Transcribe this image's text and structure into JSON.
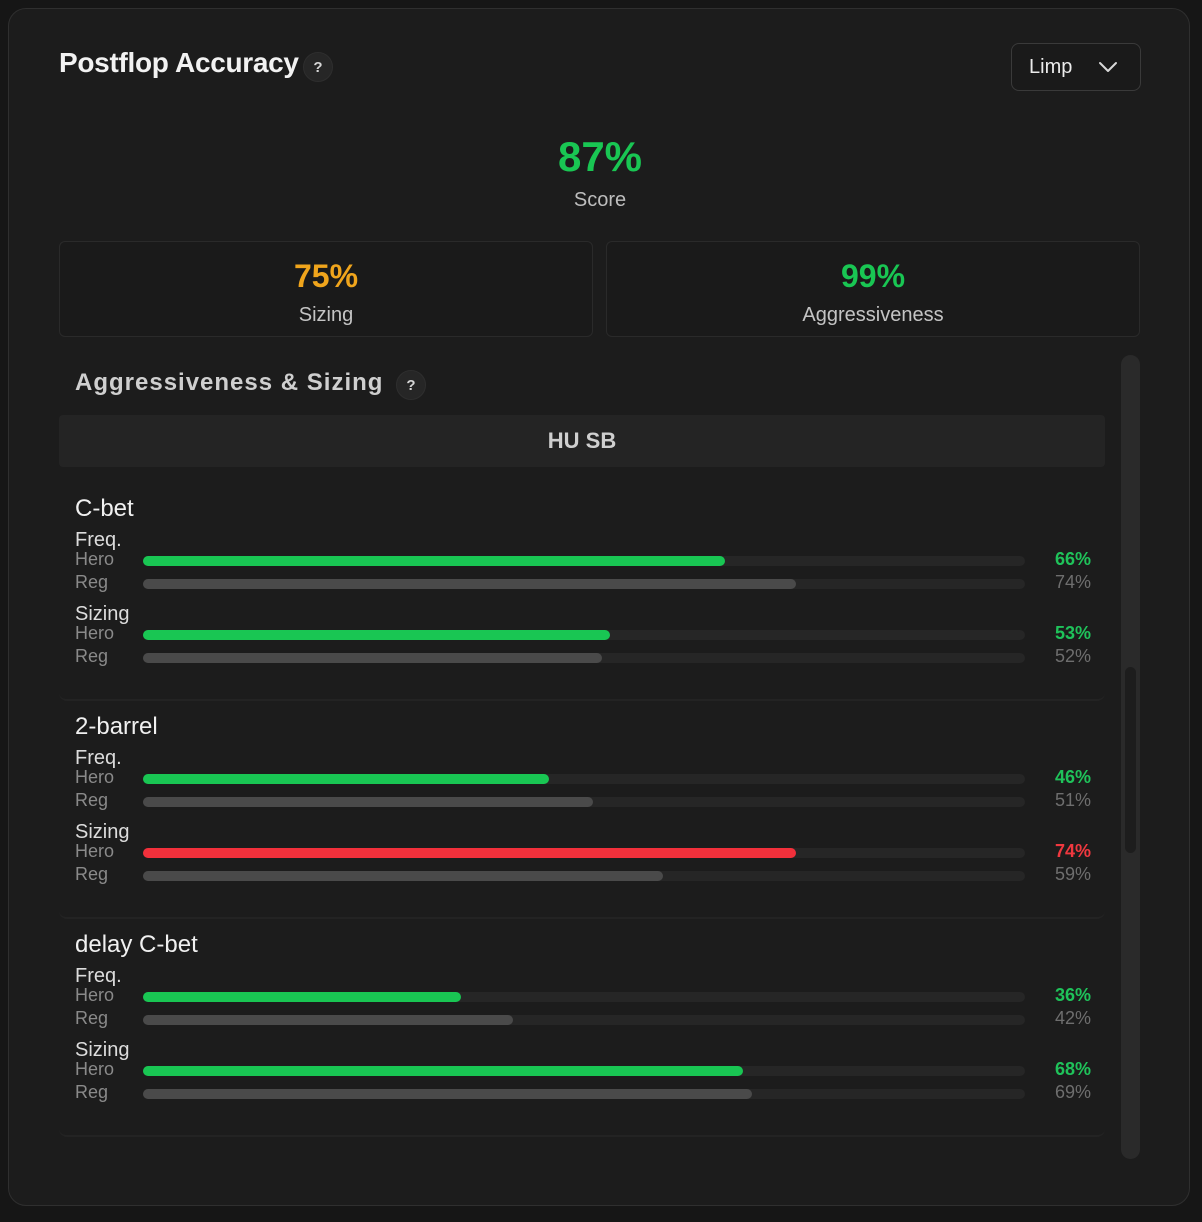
{
  "header": {
    "title": "Postflop Accuracy",
    "help": "?",
    "dropdown": {
      "selected": "Limp"
    }
  },
  "score": {
    "value": "87%",
    "label": "Score",
    "color": "#19c653"
  },
  "stats": [
    {
      "value": "75%",
      "label": "Sizing",
      "color": "#f0a51c"
    },
    {
      "value": "99%",
      "label": "Aggressiveness",
      "color": "#19c653"
    }
  ],
  "section": {
    "title": "Aggressiveness & Sizing",
    "help": "?",
    "group": "HU SB",
    "colors": {
      "good": "#19c653",
      "bad": "#f2303b",
      "reg": "#4a4a4a",
      "goodText": "#1fc25a",
      "badText": "#f0383f"
    },
    "blocks": [
      {
        "name": "C-bet",
        "metrics": [
          {
            "label": "Freq.",
            "hero_label": "Hero",
            "reg_label": "Reg",
            "hero": 66,
            "hero_text": "66%",
            "reg": 74,
            "reg_text": "74%",
            "status": "good"
          },
          {
            "label": "Sizing",
            "hero_label": "Hero",
            "reg_label": "Reg",
            "hero": 53,
            "hero_text": "53%",
            "reg": 52,
            "reg_text": "52%",
            "status": "good"
          }
        ]
      },
      {
        "name": "2-barrel",
        "metrics": [
          {
            "label": "Freq.",
            "hero_label": "Hero",
            "reg_label": "Reg",
            "hero": 46,
            "hero_text": "46%",
            "reg": 51,
            "reg_text": "51%",
            "status": "good"
          },
          {
            "label": "Sizing",
            "hero_label": "Hero",
            "reg_label": "Reg",
            "hero": 74,
            "hero_text": "74%",
            "reg": 59,
            "reg_text": "59%",
            "status": "bad"
          }
        ]
      },
      {
        "name": "delay C-bet",
        "metrics": [
          {
            "label": "Freq.",
            "hero_label": "Hero",
            "reg_label": "Reg",
            "hero": 36,
            "hero_text": "36%",
            "reg": 42,
            "reg_text": "42%",
            "status": "good"
          },
          {
            "label": "Sizing",
            "hero_label": "Hero",
            "reg_label": "Reg",
            "hero": 68,
            "hero_text": "68%",
            "reg": 69,
            "reg_text": "69%",
            "status": "good"
          }
        ]
      }
    ]
  }
}
